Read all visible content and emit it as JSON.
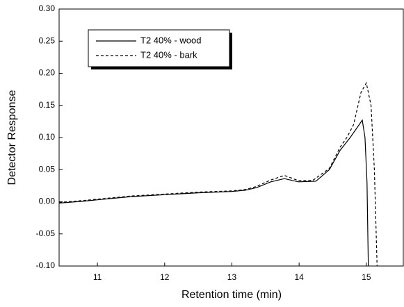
{
  "chart_data": {
    "type": "line",
    "xlabel": "Retention time (min)",
    "ylabel": "Detector Response",
    "xlim": [
      10.43,
      15.55
    ],
    "ylim": [
      -0.1,
      0.3
    ],
    "xticks": [
      11,
      12,
      13,
      14,
      15
    ],
    "yticks": [
      {
        "value": 0.3,
        "label": "0.30"
      },
      0.25,
      {
        "value": 0.2,
        "label": "0.20"
      },
      0.15,
      {
        "value": 0.1,
        "label": "0.10"
      },
      0.05,
      {
        "value": 0,
        "label": "0.00"
      },
      -0.05,
      {
        "value": -0.1,
        "label": "-0.10"
      }
    ],
    "series": [
      {
        "name": "T2 40% - wood",
        "color": "#000000",
        "dashed": false,
        "x": [
          10.43,
          10.8,
          11.0,
          11.5,
          12.0,
          12.5,
          13.0,
          13.2,
          13.37,
          13.58,
          13.78,
          13.99,
          14.25,
          14.45,
          14.61,
          14.76,
          14.88,
          14.94,
          14.98,
          15.01,
          15.03
        ],
        "values": [
          -0.002,
          0.001,
          0.003,
          0.008,
          0.011,
          0.014,
          0.016,
          0.018,
          0.022,
          0.031,
          0.036,
          0.031,
          0.032,
          0.05,
          0.08,
          0.1,
          0.118,
          0.127,
          0.1,
          0.03,
          -0.1
        ]
      },
      {
        "name": "T2 40% - bark",
        "color": "#000000",
        "dashed": true,
        "x": [
          10.43,
          10.8,
          11.0,
          11.5,
          12.0,
          12.5,
          13.0,
          13.2,
          13.37,
          13.58,
          13.78,
          13.99,
          14.2,
          14.45,
          14.61,
          14.71,
          14.81,
          14.92,
          15.0,
          15.07,
          15.12,
          15.16
        ],
        "values": [
          -0.001,
          0.002,
          0.004,
          0.009,
          0.012,
          0.015,
          0.017,
          0.019,
          0.024,
          0.034,
          0.041,
          0.033,
          0.033,
          0.052,
          0.085,
          0.1,
          0.12,
          0.17,
          0.185,
          0.15,
          0.05,
          -0.1
        ]
      }
    ]
  }
}
